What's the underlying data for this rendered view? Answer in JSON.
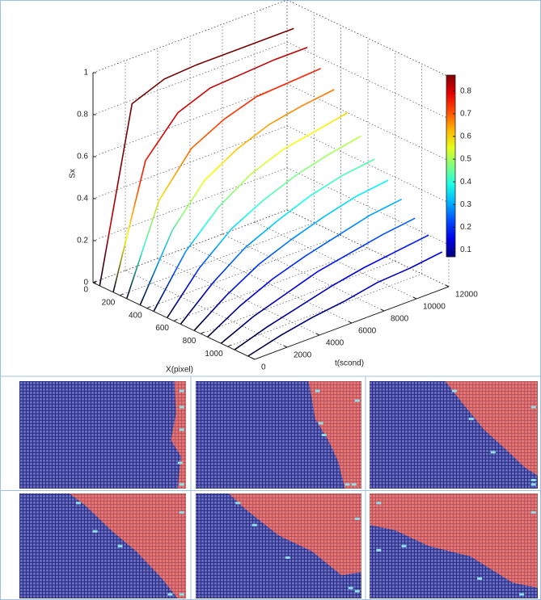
{
  "chart_data": {
    "type": "waterfall3d",
    "zlabel": "Sx",
    "xlabel": "X(pixel)",
    "tlabel": "t(scond)",
    "colormap": "jet",
    "grid": true,
    "xlim": [
      0,
      1200
    ],
    "xticks": [
      0,
      200,
      400,
      600,
      800,
      1000
    ],
    "tlim": [
      0,
      12000
    ],
    "tticks": [
      0,
      2000,
      4000,
      6000,
      8000,
      10000,
      12000
    ],
    "zlim": [
      0,
      1
    ],
    "zticks": [
      0,
      0.2,
      0.4,
      0.6,
      0.8,
      1
    ],
    "clim": [
      0.07,
      0.87
    ],
    "cticks": [
      0.1,
      0.2,
      0.3,
      0.4,
      0.5,
      0.6,
      0.7,
      0.8
    ],
    "x": [
      50,
      150,
      250,
      350,
      450,
      550,
      650,
      750,
      850,
      950,
      1050,
      1150
    ],
    "t": [
      0,
      2000,
      4000,
      6000,
      8000,
      10000,
      12000
    ],
    "z": [
      [
        0,
        0.81,
        0.87,
        0.88,
        0.88,
        0.88,
        0.88
      ],
      [
        0,
        0.57,
        0.74,
        0.8,
        0.81,
        0.82,
        0.82
      ],
      [
        0,
        0.41,
        0.6,
        0.68,
        0.73,
        0.74,
        0.75
      ],
      [
        0,
        0.3,
        0.48,
        0.57,
        0.63,
        0.66,
        0.68
      ],
      [
        0,
        0.23,
        0.38,
        0.48,
        0.54,
        0.57,
        0.6
      ],
      [
        0,
        0.18,
        0.31,
        0.39,
        0.45,
        0.49,
        0.52
      ],
      [
        0,
        0.14,
        0.25,
        0.32,
        0.38,
        0.42,
        0.44
      ],
      [
        0,
        0.11,
        0.2,
        0.26,
        0.31,
        0.35,
        0.37
      ],
      [
        0,
        0.09,
        0.16,
        0.21,
        0.25,
        0.29,
        0.31
      ],
      [
        0,
        0.07,
        0.12,
        0.17,
        0.2,
        0.23,
        0.25
      ],
      [
        0,
        0.05,
        0.09,
        0.13,
        0.16,
        0.18,
        0.2
      ],
      [
        0,
        0.04,
        0.07,
        0.09,
        0.12,
        0.13,
        0.15
      ]
    ]
  }
}
